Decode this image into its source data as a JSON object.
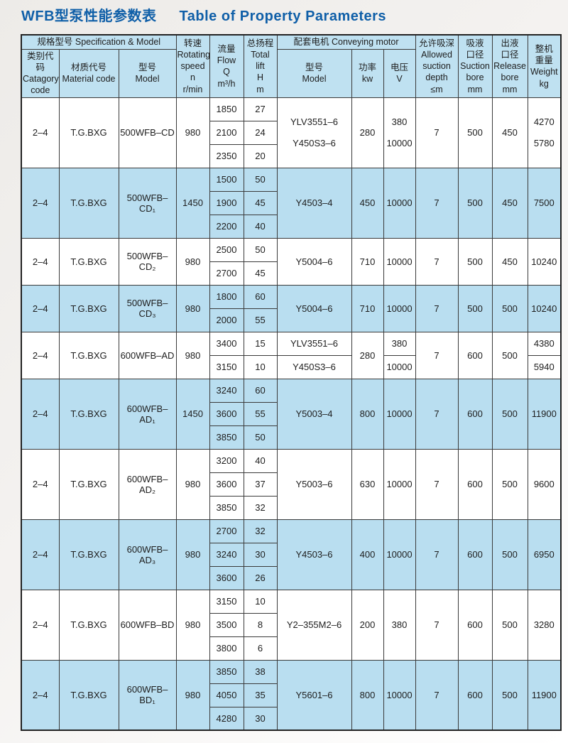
{
  "page": {
    "title_zh": "WFB型泵性能参数表",
    "title_en": "Table of Property Parameters"
  },
  "colors": {
    "title_blue": "#0f5fa8",
    "header_bg": "#bfe1f1",
    "row_blue": "#b9def0",
    "row_white": "#ffffff",
    "border": "#3a3a3a"
  },
  "table": {
    "header": {
      "spec_group": "规格型号 Specification  &  Model",
      "motor_group": "配套电机  Conveying motor",
      "category": "类别代码\nCatagory\ncode",
      "material": "材质代号\nMaterial code",
      "model": "型号\nModel",
      "speed": "转速\nRotating\nspeed n\nr/min",
      "flow": "流量\nFlow\nQ\nm³/h",
      "lift": "总扬程\nTotal\nlift\nH\nm",
      "motor_model": "型号\nModel",
      "power": "功率\nkw",
      "voltage": "电压\nV",
      "depth": "允许吸深\nAllowed\nsuction\ndepth\n≤m",
      "suction": "吸液\n口径\nSuction\nbore\nmm",
      "release": "出液\n口径\nRelease\nbore\nmm",
      "weight": "整机\n重量\nWeight\nkg"
    },
    "groups": [
      {
        "category": "2–4",
        "material": "T.G.BXG",
        "model": "500WFB–CD",
        "speed": "980",
        "flows": [
          [
            "1850",
            "27"
          ],
          [
            "2100",
            "24"
          ],
          [
            "2350",
            "20"
          ]
        ],
        "motor": {
          "lines": [
            "YLV3551–6",
            "Y450S3–6"
          ]
        },
        "power": "280",
        "voltage": {
          "lines": [
            "380",
            "10000"
          ]
        },
        "depth": "7",
        "suction": "500",
        "release": "450",
        "weight": {
          "lines": [
            "4270",
            "5780"
          ]
        }
      },
      {
        "category": "2–4",
        "material": "T.G.BXG",
        "model": "500WFB–CD₁",
        "speed": "1450",
        "flows": [
          [
            "1500",
            "50"
          ],
          [
            "1900",
            "45"
          ],
          [
            "2200",
            "40"
          ]
        ],
        "motor": "Y4503–4",
        "power": "450",
        "voltage": "10000",
        "depth": "7",
        "suction": "500",
        "release": "450",
        "weight": "7500"
      },
      {
        "category": "2–4",
        "material": "T.G.BXG",
        "model": "500WFB–CD₂",
        "speed": "980",
        "flows": [
          [
            "2500",
            "50"
          ],
          [
            "2700",
            "45"
          ]
        ],
        "motor": "Y5004–6",
        "power": "710",
        "voltage": "10000",
        "depth": "7",
        "suction": "500",
        "release": "450",
        "weight": "10240"
      },
      {
        "category": "2–4",
        "material": "T.G.BXG",
        "model": "500WFB–CD₃",
        "speed": "980",
        "flows": [
          [
            "1800",
            "60"
          ],
          [
            "2000",
            "55"
          ]
        ],
        "motor": "Y5004–6",
        "power": "710",
        "voltage": "10000",
        "depth": "7",
        "suction": "500",
        "release": "500",
        "weight": "10240"
      },
      {
        "category": "2–4",
        "material": "T.G.BXG",
        "model": "600WFB–AD",
        "speed": "980",
        "flows": [
          [
            "3400",
            "15"
          ],
          [
            "3150",
            "10"
          ]
        ],
        "motor": {
          "split": [
            "YLV3551–6",
            "Y450S3–6"
          ]
        },
        "power": "280",
        "voltage": {
          "split": [
            "380",
            "10000"
          ]
        },
        "depth": "7",
        "suction": "600",
        "release": "500",
        "weight": {
          "split": [
            "4380",
            "5940"
          ]
        }
      },
      {
        "category": "2–4",
        "material": "T.G.BXG",
        "model": "600WFB–AD₁",
        "speed": "1450",
        "flows": [
          [
            "3240",
            "60"
          ],
          [
            "3600",
            "55"
          ],
          [
            "3850",
            "50"
          ]
        ],
        "motor": "Y5003–4",
        "power": "800",
        "voltage": "10000",
        "depth": "7",
        "suction": "600",
        "release": "500",
        "weight": "11900"
      },
      {
        "category": "2–4",
        "material": "T.G.BXG",
        "model": "600WFB–AD₂",
        "speed": "980",
        "flows": [
          [
            "3200",
            "40"
          ],
          [
            "3600",
            "37"
          ],
          [
            "3850",
            "32"
          ]
        ],
        "motor": "Y5003–6",
        "power": "630",
        "voltage": "10000",
        "depth": "7",
        "suction": "600",
        "release": "500",
        "weight": "9600"
      },
      {
        "category": "2–4",
        "material": "T.G.BXG",
        "model": "600WFB–AD₃",
        "speed": "980",
        "flows": [
          [
            "2700",
            "32"
          ],
          [
            "3240",
            "30"
          ],
          [
            "3600",
            "26"
          ]
        ],
        "motor": "Y4503–6",
        "power": "400",
        "voltage": "10000",
        "depth": "7",
        "suction": "600",
        "release": "500",
        "weight": "6950"
      },
      {
        "category": "2–4",
        "material": "T.G.BXG",
        "model": "600WFB–BD",
        "speed": "980",
        "flows": [
          [
            "3150",
            "10"
          ],
          [
            "3500",
            "8"
          ],
          [
            "3800",
            "6"
          ]
        ],
        "motor": "Y2–355M2–6",
        "power": "200",
        "voltage": "380",
        "depth": "7",
        "suction": "600",
        "release": "500",
        "weight": "3280"
      },
      {
        "category": "2–4",
        "material": "T.G.BXG",
        "model": "600WFB–BD₁",
        "speed": "980",
        "flows": [
          [
            "3850",
            "38"
          ],
          [
            "4050",
            "35"
          ],
          [
            "4280",
            "30"
          ]
        ],
        "motor": "Y5601–6",
        "power": "800",
        "voltage": "10000",
        "depth": "7",
        "suction": "600",
        "release": "500",
        "weight": "11900"
      }
    ]
  }
}
